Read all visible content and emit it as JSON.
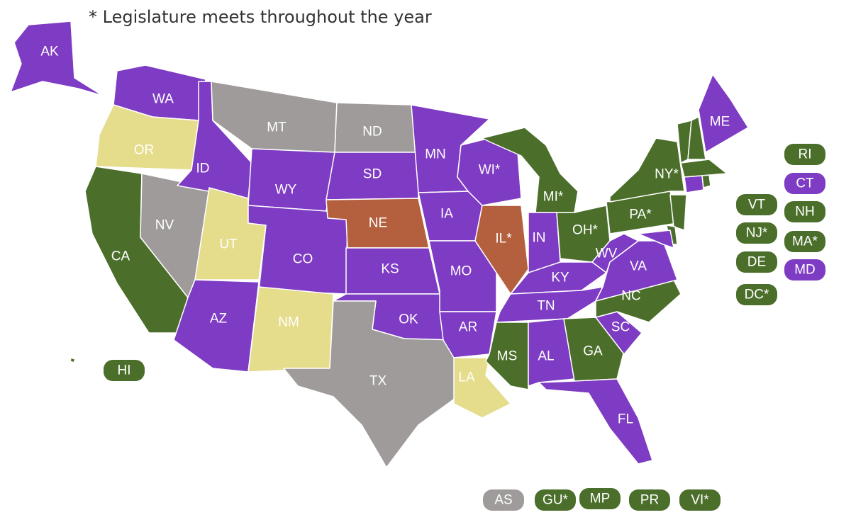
{
  "note": "* Legislature meets throughout the year",
  "states": [
    {
      "label": "AK",
      "color": "#7e3bc3"
    },
    {
      "label": "WA",
      "color": "#7e3bc3"
    },
    {
      "label": "OR",
      "color": "#e5dc8c"
    },
    {
      "label": "CA",
      "color": "#4b6f2a"
    },
    {
      "label": "NV",
      "color": "#a09b9b"
    },
    {
      "label": "ID",
      "color": "#7e3bc3"
    },
    {
      "label": "MT",
      "color": "#a09b9b"
    },
    {
      "label": "WY",
      "color": "#7e3bc3"
    },
    {
      "label": "UT",
      "color": "#e5dc8c"
    },
    {
      "label": "CO",
      "color": "#7e3bc3"
    },
    {
      "label": "AZ",
      "color": "#7e3bc3"
    },
    {
      "label": "NM",
      "color": "#e5dc8c"
    },
    {
      "label": "ND",
      "color": "#a09b9b"
    },
    {
      "label": "SD",
      "color": "#7e3bc3"
    },
    {
      "label": "NE",
      "color": "#b4603f"
    },
    {
      "label": "KS",
      "color": "#7e3bc3"
    },
    {
      "label": "OK",
      "color": "#7e3bc3"
    },
    {
      "label": "TX",
      "color": "#a09b9b"
    },
    {
      "label": "MN",
      "color": "#7e3bc3"
    },
    {
      "label": "IA",
      "color": "#7e3bc3"
    },
    {
      "label": "MO",
      "color": "#7e3bc3"
    },
    {
      "label": "AR",
      "color": "#7e3bc3"
    },
    {
      "label": "LA",
      "color": "#e5dc8c"
    },
    {
      "label": "WI*",
      "color": "#7e3bc3"
    },
    {
      "label": "IL*",
      "color": "#b4603f"
    },
    {
      "label": "MI*",
      "color": "#4b6f2a"
    },
    {
      "label": "IN",
      "color": "#7e3bc3"
    },
    {
      "label": "OH*",
      "color": "#4b6f2a"
    },
    {
      "label": "KY",
      "color": "#7e3bc3"
    },
    {
      "label": "TN",
      "color": "#7e3bc3"
    },
    {
      "label": "MS",
      "color": "#4b6f2a"
    },
    {
      "label": "AL",
      "color": "#7e3bc3"
    },
    {
      "label": "GA",
      "color": "#4b6f2a"
    },
    {
      "label": "FL",
      "color": "#7e3bc3"
    },
    {
      "label": "SC",
      "color": "#7e3bc3"
    },
    {
      "label": "NC",
      "color": "#4b6f2a"
    },
    {
      "label": "VA",
      "color": "#7e3bc3"
    },
    {
      "label": "WV",
      "color": "#7e3bc3"
    },
    {
      "label": "PA*",
      "color": "#4b6f2a"
    },
    {
      "label": "NY*",
      "color": "#4b6f2a"
    },
    {
      "label": "ME",
      "color": "#7e3bc3"
    },
    {
      "label": null,
      "color": "#4b6f2a"
    },
    {
      "label": null,
      "color": "#4b6f2a"
    },
    {
      "label": null,
      "color": "#4b6f2a"
    },
    {
      "label": null,
      "color": "#7e3bc3"
    },
    {
      "label": null,
      "color": "#4b6f2a"
    },
    {
      "label": null,
      "color": "#4b6f2a"
    },
    {
      "label": null,
      "color": "#4b6f2a"
    },
    {
      "label": null,
      "color": "#7e3bc3"
    },
    {
      "label": null,
      "color": "#4b6f2a"
    }
  ],
  "badges": [
    {
      "label": "RI",
      "color": "#4b6f2a"
    },
    {
      "label": "CT",
      "color": "#7e3bc3"
    },
    {
      "label": "VT",
      "color": "#4b6f2a"
    },
    {
      "label": "NH",
      "color": "#4b6f2a"
    },
    {
      "label": "NJ*",
      "color": "#4b6f2a"
    },
    {
      "label": "MA*",
      "color": "#4b6f2a"
    },
    {
      "label": "DE",
      "color": "#4b6f2a"
    },
    {
      "label": "MD",
      "color": "#7e3bc3"
    },
    {
      "label": "DC*",
      "color": "#4b6f2a"
    },
    {
      "label": "HI",
      "color": "#4b6f2a"
    },
    {
      "label": "AS",
      "color": "#a09b9b"
    },
    {
      "label": "GU*",
      "color": "#4b6f2a"
    },
    {
      "label": "MP",
      "color": "#4b6f2a"
    },
    {
      "label": "PR",
      "color": "#4b6f2a"
    },
    {
      "label": "VI*",
      "color": "#4b6f2a"
    }
  ]
}
